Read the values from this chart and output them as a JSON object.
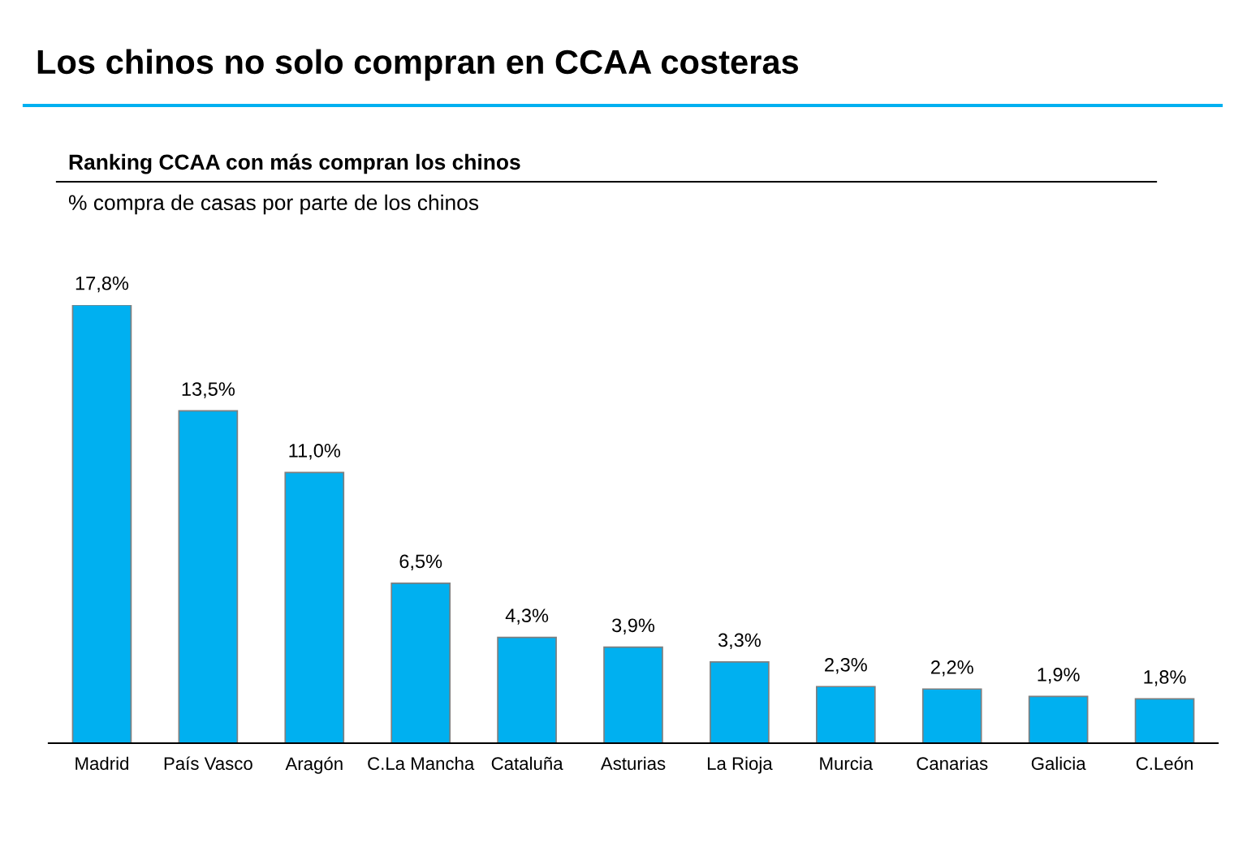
{
  "chart_data": {
    "type": "bar",
    "title": "Los chinos no solo compran en CCAA costeras",
    "subtitle": "Ranking CCAA con más compran los chinos",
    "ylabel": "% compra de casas por parte de los chinos",
    "categories": [
      "Madrid",
      "País Vasco",
      "Aragón",
      "C.La Mancha",
      "Cataluña",
      "Asturias",
      "La Rioja",
      "Murcia",
      "Canarias",
      "Galicia",
      "C.León"
    ],
    "values": [
      17.8,
      13.5,
      11.0,
      6.5,
      4.3,
      3.9,
      3.3,
      2.3,
      2.2,
      1.9,
      1.8
    ],
    "value_labels": [
      "17,8%",
      "13,5%",
      "11,0%",
      "6,5%",
      "4,3%",
      "3,9%",
      "3,3%",
      "2,3%",
      "2,2%",
      "1,9%",
      "1,8%"
    ],
    "color": "#00b0f0",
    "grid": false
  }
}
